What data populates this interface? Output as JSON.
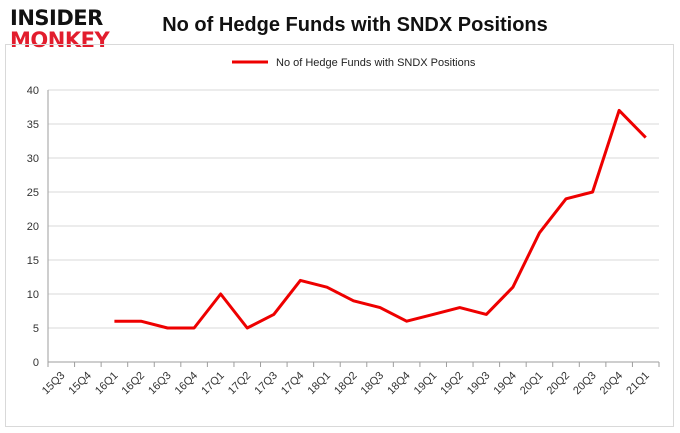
{
  "logo": {
    "line1": "INSIDER",
    "line2": "MONKEY",
    "colors": {
      "line1": "#111111",
      "line2": "#e21d2d"
    }
  },
  "chart_data": {
    "type": "line",
    "title": "No of Hedge Funds with SNDX Positions",
    "xlabel": "",
    "ylabel": "",
    "categories": [
      "15Q3",
      "15Q4",
      "16Q1",
      "16Q2",
      "16Q3",
      "16Q4",
      "17Q1",
      "17Q2",
      "17Q3",
      "17Q4",
      "18Q1",
      "18Q2",
      "18Q3",
      "18Q4",
      "19Q1",
      "19Q2",
      "19Q3",
      "19Q4",
      "20Q1",
      "20Q2",
      "20Q3",
      "20Q4",
      "21Q1"
    ],
    "series": [
      {
        "name": "No of Hedge Funds with SNDX Positions",
        "color": "#ee0000",
        "values": [
          null,
          null,
          6,
          6,
          5,
          5,
          10,
          5,
          7,
          12,
          11,
          9,
          8,
          6,
          7,
          8,
          7,
          11,
          19,
          24,
          25,
          37,
          33
        ]
      }
    ],
    "ylim": [
      0,
      40
    ],
    "yticks": [
      0,
      5,
      10,
      15,
      20,
      25,
      30,
      35,
      40
    ],
    "grid": true,
    "legend": "top-center"
  }
}
